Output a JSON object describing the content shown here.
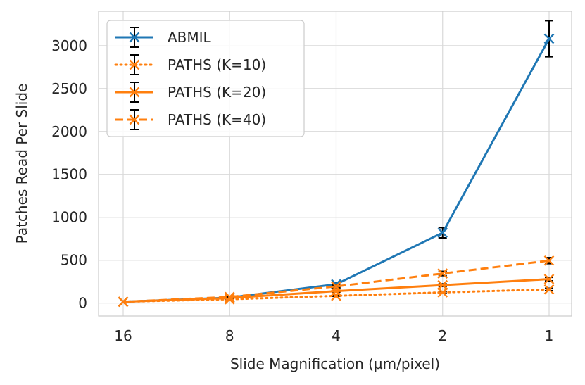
{
  "chart_data": {
    "type": "line",
    "title": "",
    "xlabel": "Slide Magnification (µm/pixel)",
    "ylabel": "Patches Read Per Slide",
    "categories": [
      "16",
      "8",
      "4",
      "2",
      "1"
    ],
    "x": [
      16,
      8,
      4,
      2,
      1
    ],
    "x_scale": "log2-reversed",
    "ylim": [
      -150,
      3400
    ],
    "yticks": [
      0,
      500,
      1000,
      1500,
      2000,
      2500,
      3000
    ],
    "ytick_labels": [
      "0",
      "500",
      "1000",
      "1500",
      "2000",
      "2500",
      "3000"
    ],
    "grid": true,
    "legend_position": "top-left",
    "series": [
      {
        "name": "ABMIL",
        "color": "#1f77b4",
        "linestyle": "solid",
        "marker": "x",
        "values": [
          16,
          64,
          220,
          820,
          3080
        ],
        "errors": [
          0,
          5,
          20,
          60,
          210
        ]
      },
      {
        "name": "PATHS (K=10)",
        "color": "#ff7f0e",
        "linestyle": "dotted",
        "marker": "x",
        "values": [
          16,
          45,
          85,
          125,
          160
        ],
        "errors": [
          0,
          3,
          6,
          10,
          14
        ]
      },
      {
        "name": "PATHS (K=20)",
        "color": "#ff7f0e",
        "linestyle": "solid",
        "marker": "x",
        "values": [
          16,
          60,
          140,
          210,
          280
        ],
        "errors": [
          0,
          4,
          10,
          15,
          20
        ]
      },
      {
        "name": "PATHS (K=40)",
        "color": "#ff7f0e",
        "linestyle": "dashed",
        "marker": "x",
        "values": [
          16,
          72,
          195,
          345,
          495
        ],
        "errors": [
          0,
          5,
          15,
          25,
          35
        ]
      }
    ]
  }
}
